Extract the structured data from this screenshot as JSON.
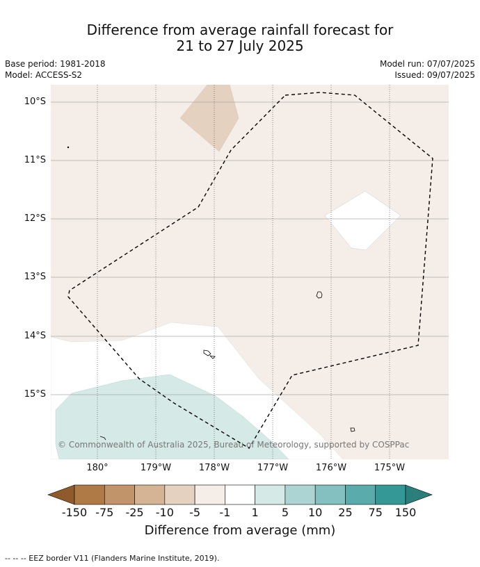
{
  "title": {
    "line1": "Difference from average rainfall forecast for",
    "line2": "21 to 27 July 2025"
  },
  "meta": {
    "base_period": "Base period: 1981-2018",
    "model": "Model: ACCESS-S2",
    "model_run": "Model run: 07/07/2025",
    "issued": "Issued: 09/07/2025"
  },
  "map": {
    "lat_labels": [
      "10°S",
      "11°S",
      "12°S",
      "13°S",
      "14°S",
      "15°S"
    ],
    "lon_labels": [
      "180°",
      "179°W",
      "178°W",
      "177°W",
      "176°W",
      "175°W"
    ],
    "copyright": "© Commonwealth of Australia 2025, Bureau of Meteorology, supported by COSPPac",
    "colors": {
      "background": "#f4ede8",
      "light_brown": "#e4d1c0",
      "white": "#ffffff",
      "light_teal": "#d5e9e7"
    }
  },
  "colorbar": {
    "labels": [
      "-150",
      "-75",
      "-25",
      "-10",
      "-5",
      "-1",
      "1",
      "5",
      "10",
      "25",
      "75",
      "150"
    ],
    "colors": [
      "#8f5b2b",
      "#b07a46",
      "#c29469",
      "#d5b395",
      "#e4d1c0",
      "#f4ede8",
      "#ffffff",
      "#d5e9e7",
      "#acd4d3",
      "#84c0bf",
      "#5aacac",
      "#339896",
      "#2a7f7c"
    ],
    "title": "Difference from average (mm)"
  },
  "footnote": "--  --  -- EEZ border V11 (Flanders Marine Institute, 2019)."
}
